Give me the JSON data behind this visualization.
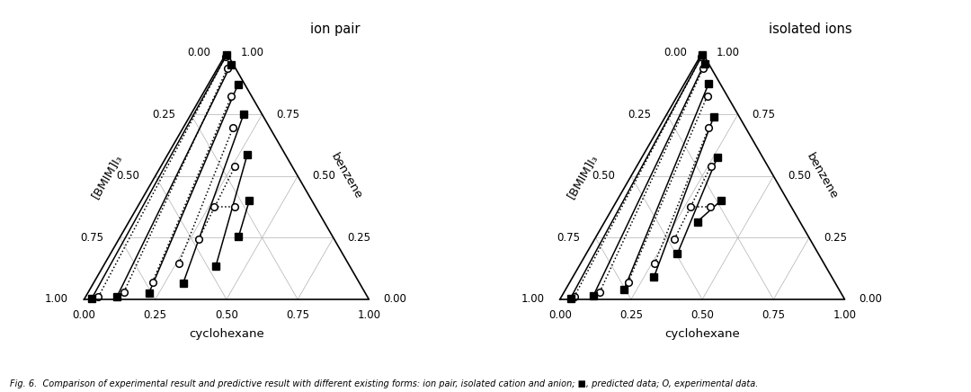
{
  "title_left": "ion pair",
  "title_right": "isolated ions",
  "caption": "Fig. 6.  Comparison of experimental result and predictive result with different existing forms: ion pair, isolated cation and anion; ■, predicted data; O, experimental data.",
  "left_label": "[BMIM]I₃",
  "right_label": "benzene",
  "bottom_label": "cyclohexane",
  "tick_values": [
    0.0,
    0.25,
    0.5,
    0.75,
    1.0
  ],
  "ion_pair_tie_lines_pred": [
    [
      [
        0.97,
        0.005,
        0.025
      ],
      [
        0.005,
        0.99,
        0.005
      ]
    ],
    [
      [
        0.88,
        0.01,
        0.11
      ],
      [
        0.01,
        0.95,
        0.04
      ]
    ],
    [
      [
        0.76,
        0.025,
        0.215
      ],
      [
        0.025,
        0.87,
        0.105
      ]
    ],
    [
      [
        0.62,
        0.065,
        0.315
      ],
      [
        0.065,
        0.75,
        0.185
      ]
    ],
    [
      [
        0.47,
        0.135,
        0.395
      ],
      [
        0.135,
        0.585,
        0.28
      ]
    ],
    [
      [
        0.33,
        0.255,
        0.415
      ],
      [
        0.22,
        0.4,
        0.38
      ]
    ]
  ],
  "ion_pair_tie_lines_exp": [
    [
      [
        0.945,
        0.01,
        0.045
      ],
      [
        0.01,
        0.985,
        0.005
      ]
    ],
    [
      [
        0.845,
        0.03,
        0.125
      ],
      [
        0.03,
        0.935,
        0.035
      ]
    ],
    [
      [
        0.725,
        0.07,
        0.205
      ],
      [
        0.07,
        0.825,
        0.105
      ]
    ],
    [
      [
        0.595,
        0.145,
        0.26
      ],
      [
        0.13,
        0.695,
        0.175
      ]
    ],
    [
      [
        0.475,
        0.245,
        0.28
      ],
      [
        0.2,
        0.54,
        0.26
      ]
    ],
    [
      [
        0.355,
        0.375,
        0.27
      ],
      [
        0.285,
        0.375,
        0.34
      ]
    ]
  ],
  "isolated_tie_lines_pred": [
    [
      [
        0.96,
        0.005,
        0.035
      ],
      [
        0.005,
        0.99,
        0.005
      ]
    ],
    [
      [
        0.875,
        0.015,
        0.11
      ],
      [
        0.015,
        0.955,
        0.03
      ]
    ],
    [
      [
        0.755,
        0.04,
        0.205
      ],
      [
        0.04,
        0.875,
        0.085
      ]
    ],
    [
      [
        0.625,
        0.09,
        0.285
      ],
      [
        0.09,
        0.74,
        0.17
      ]
    ],
    [
      [
        0.495,
        0.185,
        0.32
      ],
      [
        0.16,
        0.575,
        0.265
      ]
    ],
    [
      [
        0.36,
        0.315,
        0.325
      ],
      [
        0.235,
        0.4,
        0.365
      ]
    ]
  ],
  "isolated_tie_lines_exp": [
    [
      [
        0.945,
        0.01,
        0.045
      ],
      [
        0.01,
        0.985,
        0.005
      ]
    ],
    [
      [
        0.845,
        0.03,
        0.125
      ],
      [
        0.03,
        0.935,
        0.035
      ]
    ],
    [
      [
        0.725,
        0.07,
        0.205
      ],
      [
        0.07,
        0.825,
        0.105
      ]
    ],
    [
      [
        0.595,
        0.145,
        0.26
      ],
      [
        0.13,
        0.695,
        0.175
      ]
    ],
    [
      [
        0.475,
        0.245,
        0.28
      ],
      [
        0.2,
        0.54,
        0.26
      ]
    ],
    [
      [
        0.355,
        0.375,
        0.27
      ],
      [
        0.285,
        0.375,
        0.34
      ]
    ]
  ],
  "background": "#ffffff",
  "grid_color": "#b0b0b0",
  "fontsize_tick": 8.5,
  "fontsize_label": 9.5,
  "fontsize_title": 10.5,
  "fontsize_caption": 7.0
}
